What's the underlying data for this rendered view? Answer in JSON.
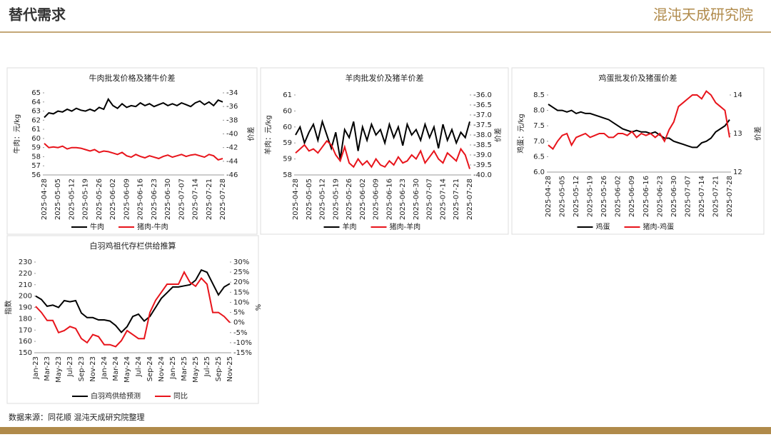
{
  "header": {
    "title": "替代需求",
    "logo": "混沌天成研究院"
  },
  "footer": {
    "source": "数据来源：同花顺 混沌天成研究院整理"
  },
  "chart_data": [
    {
      "type": "line",
      "title": "牛肉批发价格及猪牛价差",
      "y_label": "牛肉：元/kg",
      "y2_label": "价差",
      "categories": [
        "2025-04-28",
        null,
        null,
        "2025-05-05",
        null,
        null,
        "2025-05-12",
        null,
        null,
        "2025-05-19",
        null,
        null,
        "2025-05-26",
        null,
        null,
        "2025-06-02",
        null,
        null,
        "2025-06-09",
        null,
        null,
        "2025-06-16",
        null,
        null,
        "2025-06-23",
        null,
        null,
        "2025-06-30",
        null,
        null,
        "2025-07-07",
        null,
        null,
        "2025-07-14",
        null,
        null,
        "2025-07-21",
        null,
        null,
        "2025-07-28"
      ],
      "ylim": [
        56,
        65
      ],
      "yticks": [
        56,
        57,
        58,
        59,
        60,
        61,
        62,
        63,
        64,
        65
      ],
      "y2lim": [
        -46,
        -34
      ],
      "y2ticks": [
        -46,
        -44,
        -42,
        -40,
        -38,
        -36,
        -34
      ],
      "series": [
        {
          "name": "牛肉",
          "color": "#000000",
          "values": [
            62.3,
            62.8,
            62.7,
            63.0,
            62.9,
            63.2,
            63.0,
            63.3,
            63.1,
            63.0,
            63.2,
            63.0,
            63.4,
            63.2,
            64.3,
            63.6,
            63.3,
            63.8,
            63.4,
            63.6,
            63.5,
            63.9,
            63.6,
            63.8,
            63.5,
            63.7,
            63.9,
            63.6,
            63.8,
            63.6,
            63.9,
            63.7,
            63.5,
            63.9,
            64.1,
            63.7,
            64.0,
            63.6,
            64.2,
            64.0
          ]
        },
        {
          "name": "猪肉-牛肉",
          "color": "#e8141b",
          "axis": "y2",
          "values": [
            -41.4,
            -42.0,
            -41.9,
            -42.0,
            -41.8,
            -42.2,
            -42.0,
            -42.0,
            -42.1,
            -42.3,
            -42.5,
            -42.3,
            -42.7,
            -42.5,
            -42.6,
            -42.8,
            -43.0,
            -42.7,
            -43.2,
            -43.4,
            -43.0,
            -43.3,
            -43.5,
            -43.2,
            -43.4,
            -43.6,
            -43.3,
            -43.1,
            -43.4,
            -43.2,
            -43.0,
            -43.3,
            -43.1,
            -43.0,
            -43.2,
            -43.4,
            -43.0,
            -43.2,
            -43.8,
            -43.6
          ]
        }
      ]
    },
    {
      "type": "line",
      "title": "羊肉批发价及猪羊价差",
      "y_label": "羊肉：元/kg",
      "y2_label": "价差",
      "categories": [
        "2025-04-28",
        null,
        null,
        "2025-05-05",
        null,
        null,
        "2025-05-12",
        null,
        null,
        "2025-05-19",
        null,
        null,
        "2025-05-26",
        null,
        null,
        "2025-06-02",
        null,
        null,
        "2025-06-09",
        null,
        null,
        "2025-06-16",
        null,
        null,
        "2025-06-23",
        null,
        null,
        "2025-06-30",
        null,
        null,
        "2025-07-07",
        null,
        null,
        "2025-07-14",
        null,
        null,
        "2025-07-21",
        null,
        null,
        "2025-07-28"
      ],
      "ylim": [
        58,
        61
      ],
      "yticks": [
        58,
        {
          "value": 58.6,
          "label": "59"
        },
        {
          "value": 59.2,
          "label": "59"
        },
        {
          "value": 59.8,
          "label": "60"
        },
        {
          "value": 60.4,
          "label": "60"
        },
        61
      ],
      "y2lim": [
        -40,
        -36
      ],
      "y2ticks": [
        {
          "value": -40,
          "label": "-40.0"
        },
        -39.5,
        {
          "value": -39,
          "label": "-39.0"
        },
        -38.5,
        {
          "value": -38,
          "label": "-38.0"
        },
        -37.5,
        {
          "value": -37,
          "label": "-37.0"
        },
        -36.5,
        {
          "value": -36,
          "label": "-36.0"
        }
      ],
      "series": [
        {
          "name": "羊肉",
          "color": "#000000",
          "values": [
            59.5,
            59.8,
            59.2,
            59.6,
            59.9,
            59.3,
            60.0,
            59.5,
            59.0,
            59.6,
            58.6,
            59.7,
            59.4,
            60.0,
            58.9,
            59.8,
            59.3,
            59.9,
            59.5,
            59.7,
            59.2,
            59.9,
            59.4,
            59.8,
            59.1,
            59.9,
            59.5,
            59.7,
            59.3,
            59.9,
            59.4,
            59.8,
            59.0,
            59.9,
            59.3,
            59.7,
            59.2,
            59.6,
            59.4,
            60.0
          ]
        },
        {
          "name": "猪肉-羊肉",
          "color": "#e8141b",
          "axis": "y2",
          "values": [
            -38.9,
            -38.7,
            -38.5,
            -38.8,
            -38.7,
            -38.9,
            -38.6,
            -38.3,
            -38.5,
            -39.0,
            -39.3,
            -38.6,
            -39.4,
            -39.6,
            -39.2,
            -39.5,
            -39.3,
            -39.6,
            -39.2,
            -39.5,
            -39.6,
            -39.3,
            -39.5,
            -39.1,
            -39.4,
            -39.3,
            -39.0,
            -39.2,
            -38.8,
            -39.4,
            -39.1,
            -38.8,
            -39.2,
            -39.4,
            -38.9,
            -39.1,
            -39.3,
            -38.7,
            -39.0,
            -39.7
          ]
        }
      ]
    },
    {
      "type": "line",
      "title": "鸡蛋批发价及猪蛋价差",
      "y_label": "鸡蛋：元/kg",
      "y2_label": "价差",
      "categories": [
        "2025-04-28",
        null,
        null,
        "2025-05-05",
        null,
        null,
        "2025-05-12",
        null,
        null,
        "2025-05-19",
        null,
        null,
        "2025-05-26",
        null,
        null,
        "2025-06-02",
        null,
        null,
        "2025-06-09",
        null,
        null,
        "2025-06-16",
        null,
        null,
        "2025-06-23",
        null,
        null,
        "2025-06-30",
        null,
        null,
        "2025-07-07",
        null,
        null,
        "2025-07-14",
        null,
        null,
        "2025-07-21",
        null,
        null,
        "2025-07-28"
      ],
      "ylim": [
        6,
        8.5
      ],
      "yticks": [
        {
          "value": 6,
          "label": "6.0"
        },
        6.5,
        {
          "value": 7,
          "label": "7.0"
        },
        7.5,
        {
          "value": 8,
          "label": "8.0"
        },
        8.5
      ],
      "y2lim": [
        12,
        14
      ],
      "y2ticks": [
        12,
        13,
        14
      ],
      "series": [
        {
          "name": "鸡蛋",
          "color": "#000000",
          "values": [
            8.2,
            8.1,
            8.0,
            8.0,
            7.95,
            8.0,
            7.9,
            7.95,
            7.9,
            7.9,
            7.85,
            7.8,
            7.75,
            7.7,
            7.6,
            7.5,
            7.4,
            7.35,
            7.3,
            7.35,
            7.3,
            7.3,
            7.25,
            7.3,
            7.2,
            7.1,
            7.1,
            7.0,
            6.95,
            6.9,
            6.85,
            6.8,
            6.8,
            6.95,
            7.0,
            7.1,
            7.3,
            7.4,
            7.5,
            7.7
          ]
        },
        {
          "name": "猪肉-鸡蛋",
          "color": "#e8141b",
          "axis": "y2",
          "values": [
            12.7,
            12.6,
            12.8,
            12.95,
            13.0,
            12.7,
            12.9,
            12.95,
            13.0,
            12.9,
            12.95,
            13.0,
            13.0,
            12.9,
            12.9,
            13.0,
            13.0,
            12.95,
            13.05,
            12.9,
            13.0,
            12.95,
            13.0,
            12.9,
            13.0,
            12.8,
            13.1,
            13.3,
            13.7,
            13.8,
            13.9,
            14.0,
            14.0,
            13.9,
            14.1,
            14.0,
            13.8,
            13.7,
            13.6,
            12.9
          ]
        }
      ]
    },
    {
      "type": "line",
      "title": "白羽鸡祖代存栏供给推算",
      "y_label": "指数",
      "y2_label": "%",
      "categories": [
        "Jan-23",
        null,
        "Mar-23",
        null,
        "May-23",
        null,
        "Jul-23",
        null,
        "Sep-23",
        null,
        "Nov-23",
        null,
        "Jan-24",
        null,
        "Mar-24",
        null,
        "May-24",
        null,
        "Jul-24",
        null,
        "Sep-24",
        null,
        "Nov-24",
        null,
        "Jan-25",
        null,
        "Mar-25",
        null,
        "May-25",
        null,
        "Jul-25",
        null,
        "Sep-25",
        null,
        "Nov-25"
      ],
      "ylim": [
        150,
        230
      ],
      "yticks": [
        150,
        160,
        170,
        180,
        190,
        200,
        210,
        220,
        230
      ],
      "y2lim": [
        -15,
        30
      ],
      "y2ticks": [
        {
          "value": -15,
          "label": "-15%"
        },
        {
          "value": -10,
          "label": "-10%"
        },
        {
          "value": -5,
          "label": "-5%"
        },
        {
          "value": 0,
          "label": "0%"
        },
        {
          "value": 5,
          "label": "5%"
        },
        {
          "value": 10,
          "label": "10%"
        },
        {
          "value": 15,
          "label": "15%"
        },
        {
          "value": 20,
          "label": "20%"
        },
        {
          "value": 25,
          "label": "25%"
        },
        {
          "value": 30,
          "label": "30%"
        }
      ],
      "series": [
        {
          "name": "白羽鸡供给预测",
          "color": "#000000",
          "values": [
            200,
            197,
            191,
            192,
            190,
            196,
            195,
            196,
            185,
            181,
            181,
            179,
            179,
            178,
            174,
            168,
            173,
            182,
            184,
            178,
            182,
            190,
            198,
            203,
            208,
            208,
            209,
            210,
            214,
            223,
            221,
            211,
            201,
            208,
            211
          ]
        },
        {
          "name": "同比",
          "color": "#e8141b",
          "axis": "y2",
          "values": [
            8,
            5,
            1,
            1,
            -5,
            -4,
            -2,
            -3,
            -8,
            -10,
            -6,
            -7,
            -11,
            -11,
            -12,
            -9,
            -4,
            -6,
            -8,
            -8,
            5,
            11,
            15,
            19,
            19,
            19,
            25,
            20,
            18,
            22,
            19,
            5,
            5,
            3,
            0
          ]
        }
      ]
    }
  ]
}
